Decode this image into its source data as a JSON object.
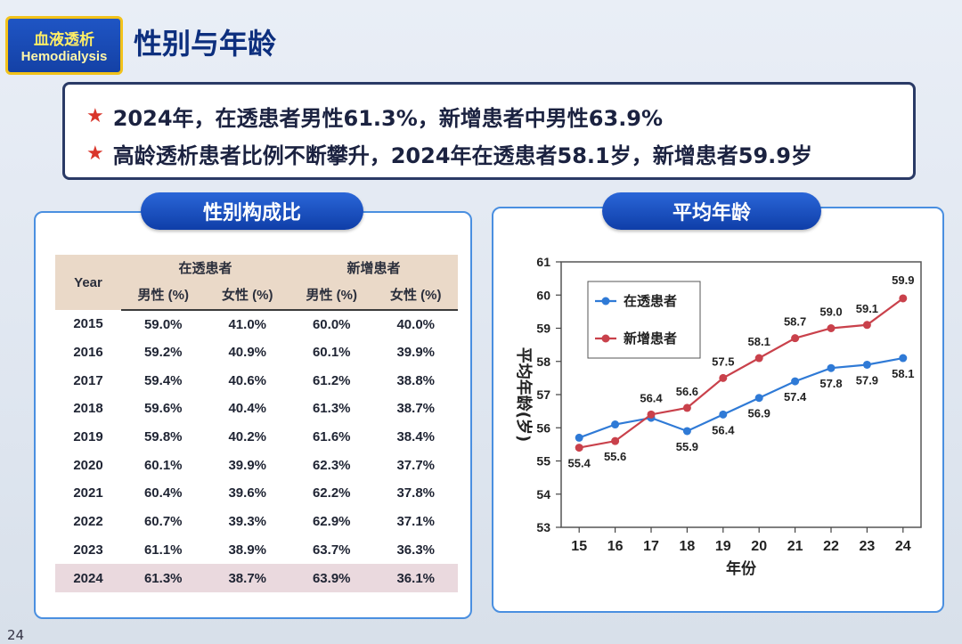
{
  "badge": {
    "cn": "血液透析",
    "en": "Hemodialysis"
  },
  "title": "性别与年龄",
  "summary": {
    "lines": [
      "2024年，在透患者男性61.3%，新增患者中男性63.9%",
      "高龄透析患者比例不断攀升，2024年在透患者58.1岁，新增患者59.9岁"
    ],
    "star": "★"
  },
  "gender_panel": {
    "title": "性别构成比",
    "year_header": "Year",
    "groups": [
      "在透患者",
      "新增患者"
    ],
    "subheaders": [
      "男性 (%)",
      "女性 (%)",
      "男性 (%)",
      "女性 (%)"
    ],
    "rows": [
      [
        "2015",
        "59.0%",
        "41.0%",
        "60.0%",
        "40.0%"
      ],
      [
        "2016",
        "59.2%",
        "40.9%",
        "60.1%",
        "39.9%"
      ],
      [
        "2017",
        "59.4%",
        "40.6%",
        "61.2%",
        "38.8%"
      ],
      [
        "2018",
        "59.6%",
        "40.4%",
        "61.3%",
        "38.7%"
      ],
      [
        "2019",
        "59.8%",
        "40.2%",
        "61.6%",
        "38.4%"
      ],
      [
        "2020",
        "60.1%",
        "39.9%",
        "62.3%",
        "37.7%"
      ],
      [
        "2021",
        "60.4%",
        "39.6%",
        "62.2%",
        "37.8%"
      ],
      [
        "2022",
        "60.7%",
        "39.3%",
        "62.9%",
        "37.1%"
      ],
      [
        "2023",
        "61.1%",
        "38.9%",
        "63.7%",
        "36.3%"
      ],
      [
        "2024",
        "61.3%",
        "38.7%",
        "63.9%",
        "36.1%"
      ]
    ],
    "highlight_year": "2024"
  },
  "age_panel": {
    "title": "平均年龄"
  },
  "chart_data": {
    "type": "line",
    "x": [
      "15",
      "16",
      "17",
      "18",
      "19",
      "20",
      "21",
      "22",
      "23",
      "24"
    ],
    "xlabel": "年份",
    "ylabel": "平均年龄(岁)",
    "ylim": [
      53,
      61
    ],
    "yticks": [
      53,
      54,
      55,
      56,
      57,
      58,
      59,
      60,
      61
    ],
    "legend_position": "top-left",
    "series": [
      {
        "name": "在透患者",
        "color": "#2f7ad6",
        "values": [
          55.7,
          56.1,
          56.3,
          55.9,
          56.4,
          56.9,
          57.4,
          57.8,
          57.9,
          58.1
        ],
        "labels": [
          "",
          "",
          "",
          "55.9",
          "56.4",
          "56.9",
          "57.4",
          "57.8",
          "57.9",
          "58.1"
        ]
      },
      {
        "name": "新增患者",
        "color": "#c9414b",
        "values": [
          55.4,
          55.6,
          56.4,
          56.6,
          57.5,
          58.1,
          58.7,
          59.0,
          59.1,
          59.9
        ],
        "labels": [
          "55.4",
          "55.6",
          "56.4",
          "56.6",
          "57.5",
          "58.1",
          "58.7",
          "59.0",
          "59.1",
          "59.9"
        ]
      }
    ]
  },
  "page_number": "24"
}
